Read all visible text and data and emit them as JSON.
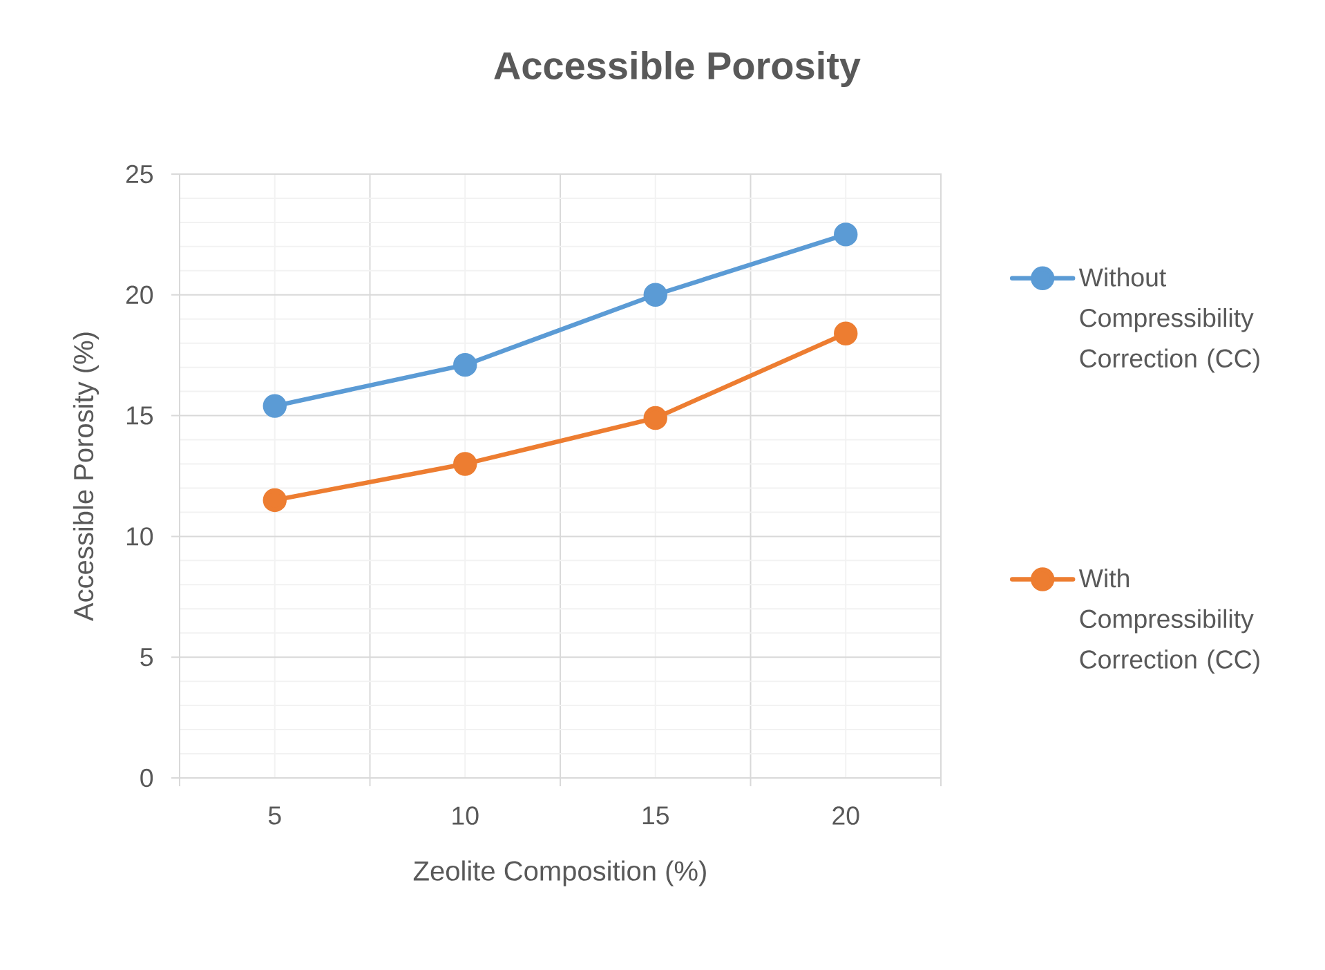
{
  "chart_data": {
    "type": "line",
    "title": "Accessible Porosity",
    "xlabel": "Zeolite Composition (%)",
    "ylabel": "Accessible Porosity (%)",
    "categories": [
      "5",
      "10",
      "15",
      "20"
    ],
    "series": [
      {
        "name": "Without Compressibility Correction (CC)",
        "color": "#5b9bd5",
        "values": [
          15.4,
          17.1,
          20.0,
          22.5
        ]
      },
      {
        "name": "With Compressibility Correction (CC)",
        "color": "#ed7d31",
        "values": [
          11.5,
          13.0,
          14.9,
          18.4
        ]
      }
    ],
    "ylim": [
      0,
      25
    ],
    "yticks": [
      0,
      5,
      10,
      15,
      20,
      25
    ],
    "grid": true,
    "legend": "right",
    "marker": "circle",
    "line_style": "solid"
  }
}
